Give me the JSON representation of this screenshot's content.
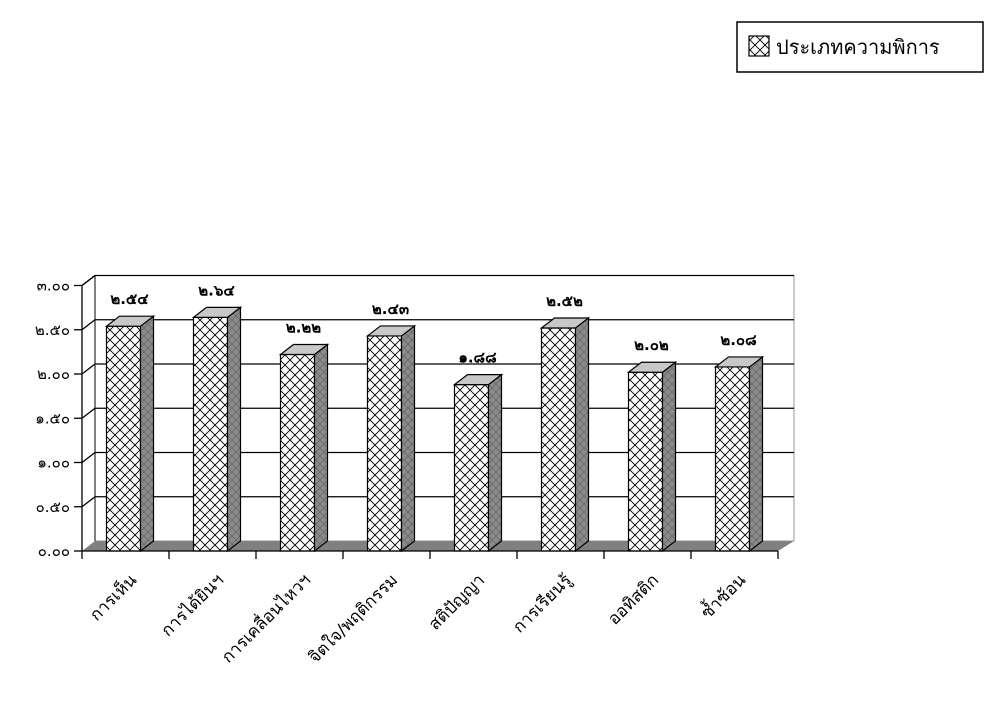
{
  "chart_data": {
    "type": "bar",
    "style": "3d-column",
    "categories": [
      "การเห็น",
      "การได้ยินฯ",
      "การเคลื่อนไหวฯ",
      "จิตใจ/พฤติกรรม",
      "สติปัญญา",
      "การเรียนรู้",
      "ออทิสติก",
      "ซ้ำซ้อน"
    ],
    "series": [
      {
        "name": "ประเภทความพิการ",
        "values": [
          2.54,
          2.64,
          2.22,
          2.43,
          1.88,
          2.52,
          2.02,
          2.08
        ],
        "value_labels": [
          "๒.๕๔",
          "๒.๖๔",
          "๒.๒๒",
          "๒.๔๓",
          "๑.๘๘",
          "๒.๕๒",
          "๒.๐๒",
          "๒.๐๘"
        ],
        "fill": "#ffffff",
        "pattern": "diagonal-crosshatch",
        "side_color": "#8a8a8a",
        "top_color": "#c8c8c8"
      }
    ],
    "ylim": [
      0,
      3
    ],
    "y_ticks": [
      0,
      0.5,
      1,
      1.5,
      2,
      2.5,
      3
    ],
    "y_tick_labels": [
      "๐.๐๐",
      "๐.๕๐",
      "๑.๐๐",
      "๑.๕๐",
      "๒.๐๐",
      "๒.๕๐",
      "๓.๐๐"
    ],
    "grid": true,
    "legend": "top-right",
    "title": "",
    "xlabel": "",
    "ylabel": "",
    "floor_color": "#808080"
  }
}
